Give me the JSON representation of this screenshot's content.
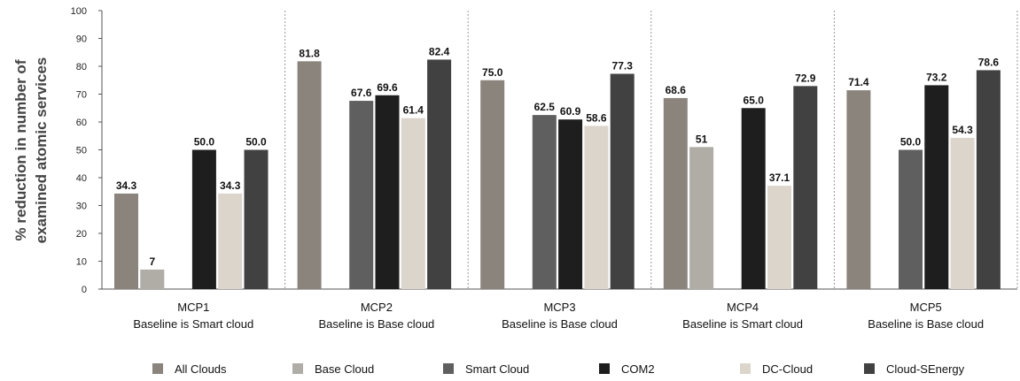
{
  "chart_data": {
    "type": "bar",
    "title": "",
    "ylabel_lines": [
      "% reduction in number of",
      "examined atomic services"
    ],
    "ylim": [
      0,
      100
    ],
    "yticks": [
      0,
      10,
      20,
      30,
      40,
      50,
      60,
      70,
      80,
      90,
      100
    ],
    "categories": [
      "MCP1",
      "MCP2",
      "MCP3",
      "MCP4",
      "MCP5"
    ],
    "category_sublabels": [
      "Baseline is Smart cloud",
      "Baseline is Base cloud",
      "Baseline is Base cloud",
      "Baseline is Smart cloud",
      "Baseline is Base cloud"
    ],
    "grid": "vertical dashed separators between groups",
    "legend_position": "bottom",
    "series": [
      {
        "name": "All Clouds",
        "color": "#8a847d",
        "values": [
          34.3,
          81.8,
          75.0,
          68.6,
          71.4
        ],
        "labels": [
          "34.3",
          "81.8",
          "75.0",
          "68.6",
          "71.4"
        ]
      },
      {
        "name": "Base Cloud",
        "color": "#b0aca6",
        "values": [
          7,
          null,
          null,
          51,
          null
        ],
        "labels": [
          "7",
          "",
          "",
          "51",
          ""
        ]
      },
      {
        "name": "Smart Cloud",
        "color": "#5f5f5f",
        "values": [
          null,
          67.6,
          62.5,
          null,
          50.0
        ],
        "labels": [
          "",
          "67.6",
          "62.5",
          "",
          "50.0"
        ]
      },
      {
        "name": "COM2",
        "color": "#1d1e1d",
        "values": [
          50.0,
          69.6,
          60.9,
          65.0,
          73.2
        ],
        "labels": [
          "50.0",
          "69.6",
          "60.9",
          "65.0",
          "73.2"
        ]
      },
      {
        "name": "DC-Cloud",
        "color": "#dcd5cc",
        "values": [
          34.3,
          61.4,
          58.6,
          37.1,
          54.3
        ],
        "labels": [
          "34.3",
          "61.4",
          "58.6",
          "37.1",
          "54.3"
        ]
      },
      {
        "name": "Cloud-SEnergy",
        "color": "#414141",
        "values": [
          50.0,
          82.4,
          77.3,
          72.9,
          78.6
        ],
        "labels": [
          "50.0",
          "82.4",
          "77.3",
          "72.9",
          "78.6"
        ]
      }
    ]
  }
}
